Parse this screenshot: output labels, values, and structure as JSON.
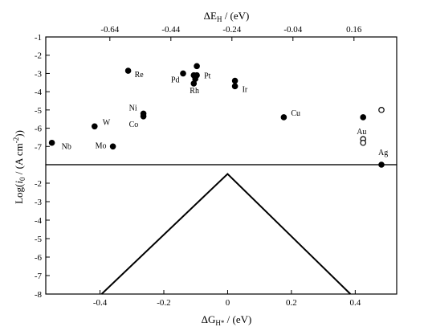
{
  "chart_data": [
    {
      "type": "scatter",
      "panel": "top",
      "title": "",
      "xlabel": "ΔE_H / (eV)",
      "xlabel_main": "ΔE",
      "xlabel_sub": "H",
      "xlabel_unit": " / (eV)",
      "xlim": [
        -0.85,
        0.3
      ],
      "ylim": [
        -8,
        -1
      ],
      "xticks": [
        -0.64,
        -0.44,
        -0.24,
        -0.04,
        0.16
      ],
      "xtick_labels": [
        "-0.64",
        "-0.44",
        "-0.24",
        "-0.04",
        "0.16"
      ],
      "yticks": [
        -1,
        -2,
        -3,
        -4,
        -5,
        -6,
        -7
      ],
      "ytick_labels": [
        "-1",
        "-2",
        "-3",
        "-4",
        "-5",
        "-6",
        "-7"
      ],
      "points": [
        {
          "x": -0.83,
          "y": -6.8,
          "label": "Nb",
          "filled": true
        },
        {
          "x": -0.69,
          "y": -5.9,
          "label": "W",
          "filled": true
        },
        {
          "x": -0.63,
          "y": -7.0,
          "label": "Mo",
          "filled": true
        },
        {
          "x": -0.58,
          "y": -2.85,
          "label": "Re",
          "filled": true
        },
        {
          "x": -0.53,
          "y": -5.2,
          "label": "Ni",
          "filled": true
        },
        {
          "x": -0.53,
          "y": -5.35,
          "label": "Co",
          "filled": true
        },
        {
          "x": -0.4,
          "y": -3.0,
          "label": "Pd",
          "filled": true
        },
        {
          "x": -0.365,
          "y": -3.1,
          "label": "",
          "filled": true
        },
        {
          "x": -0.36,
          "y": -3.3,
          "label": "",
          "filled": true
        },
        {
          "x": -0.365,
          "y": -3.55,
          "label": "Rh",
          "filled": true
        },
        {
          "x": -0.355,
          "y": -2.6,
          "label": "",
          "filled": true
        },
        {
          "x": -0.355,
          "y": -3.1,
          "label": "Pt",
          "filled": true
        },
        {
          "x": -0.23,
          "y": -3.4,
          "label": "",
          "filled": true
        },
        {
          "x": -0.23,
          "y": -3.7,
          "label": "Ir",
          "filled": true
        },
        {
          "x": -0.07,
          "y": -5.4,
          "label": "Cu",
          "filled": true
        },
        {
          "x": 0.19,
          "y": -5.4,
          "label": "Au",
          "filled": true
        },
        {
          "x": 0.19,
          "y": -6.6,
          "label": "",
          "filled": false
        },
        {
          "x": 0.19,
          "y": -6.8,
          "label": "",
          "filled": false
        },
        {
          "x": 0.25,
          "y": -5.0,
          "label": "",
          "filled": false
        },
        {
          "x": 0.25,
          "y": -8.0,
          "label": "Ag",
          "filled": true
        }
      ]
    },
    {
      "type": "line",
      "panel": "bottom",
      "title": "",
      "xlabel": "ΔG_H* / (eV)",
      "xlabel_main": "ΔG",
      "xlabel_sub": "H*",
      "xlabel_unit": " / (eV)",
      "ylabel": "Log(i_0 / (A cm^-2))",
      "xlim": [
        -0.57,
        0.53
      ],
      "ylim": [
        -8,
        -1
      ],
      "xticks": [
        -0.4,
        -0.2,
        0,
        0.2,
        0.4
      ],
      "xtick_labels": [
        "-0.4",
        "-0.2",
        "0",
        "0.2",
        "0.4"
      ],
      "yticks": [
        -2,
        -3,
        -4,
        -5,
        -6,
        -7,
        -8
      ],
      "ytick_labels": [
        "-2",
        "-3",
        "-4",
        "-5",
        "-6",
        "-7",
        "-8"
      ],
      "x": [
        -0.395,
        0,
        0.385
      ],
      "y": [
        -8,
        -1.5,
        -8
      ]
    }
  ]
}
